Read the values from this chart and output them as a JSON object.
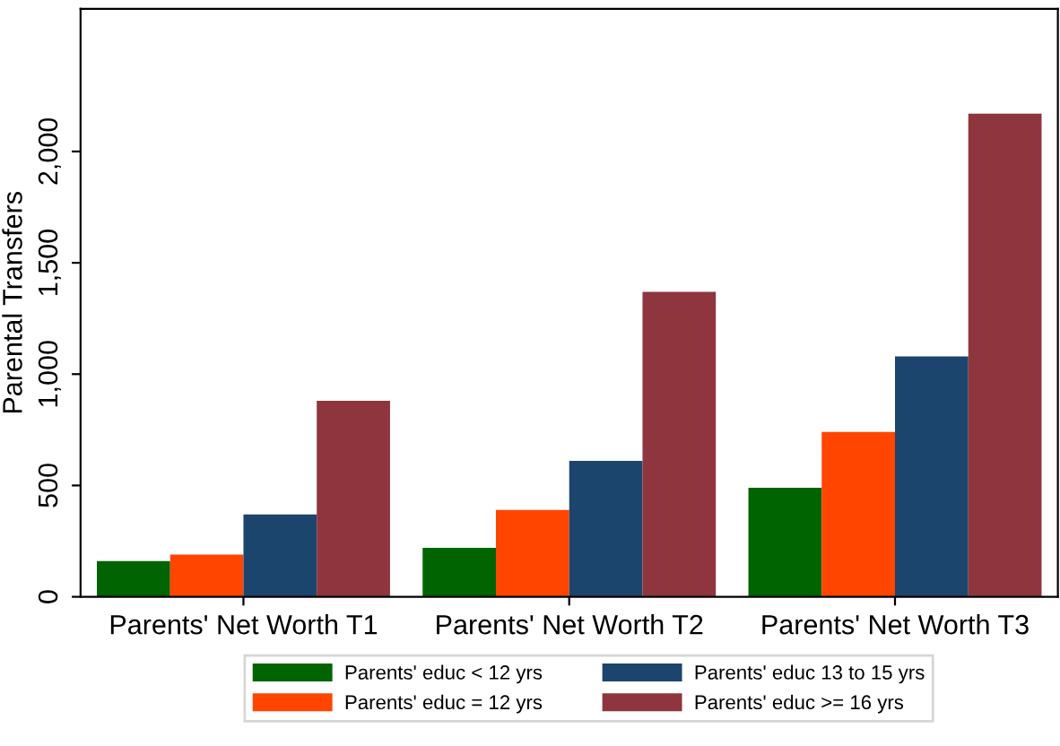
{
  "chart_data": {
    "type": "bar",
    "ylabel": "Parental Transfers",
    "categories": [
      "Parents' Net Worth T1",
      "Parents' Net Worth T2",
      "Parents' Net Worth T3"
    ],
    "series": [
      {
        "name": "Parents' educ < 12 yrs",
        "color": "#006400",
        "values": [
          160,
          220,
          490
        ]
      },
      {
        "name": "Parents' educ = 12 yrs",
        "color": "#ff4500",
        "values": [
          190,
          390,
          740
        ]
      },
      {
        "name": "Parents' educ 13 to 15 yrs",
        "color": "#1c456e",
        "values": [
          370,
          610,
          1080
        ]
      },
      {
        "name": "Parents' educ >= 16 yrs",
        "color": "#8f353d",
        "values": [
          880,
          1370,
          2170
        ]
      }
    ],
    "ylim": [
      0,
      2640
    ],
    "yticks": [
      0,
      {
        "value": 500,
        "label": "500"
      },
      {
        "value": 1000,
        "label": "1,000"
      },
      {
        "value": 1500,
        "label": "1,500"
      },
      {
        "value": 2000,
        "label": "2,000"
      }
    ],
    "grid": false,
    "legend": "bottom"
  }
}
